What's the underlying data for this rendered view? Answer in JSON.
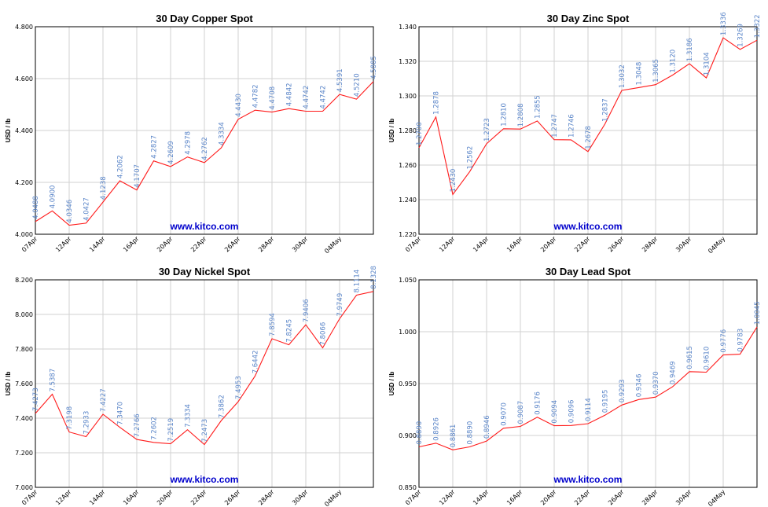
{
  "chart_data": [
    {
      "type": "line",
      "title": "30 Day Copper Spot",
      "ylabel": "USD / lb",
      "watermark": "www.kitco.com",
      "ylim": [
        4.0,
        4.8
      ],
      "yticks": [
        "4.000",
        "4.200",
        "4.400",
        "4.600",
        "4.800"
      ],
      "xtick_labels": [
        "07Apr",
        "12Apr",
        "14Apr",
        "16Apr",
        "20Apr",
        "22Apr",
        "26Apr",
        "28Apr",
        "30Apr",
        "04May"
      ],
      "grid": true,
      "series": [
        {
          "values": [
            4.0488,
            4.09,
            4.0346,
            4.0427,
            4.1238,
            4.2062,
            4.1707,
            4.2827,
            4.2609,
            4.2978,
            4.2762,
            4.3334,
            4.443,
            4.4782,
            4.4708,
            4.4842,
            4.4742,
            4.4742,
            4.5391,
            4.521,
            4.5885
          ]
        }
      ],
      "data_labels": [
        "4.0488",
        "4.0900",
        "4.0346",
        "4.0427",
        "4.1238",
        "4.2062",
        "4.1707",
        "4.2827",
        "4.2609",
        "4.2978",
        "4.2762",
        "4.3334",
        "4.4430",
        "4.4782",
        "4.4708",
        "4.4842",
        "4.4742",
        "4.4742",
        "4.5391",
        "4.5210",
        "4.5885"
      ]
    },
    {
      "type": "line",
      "title": "30 Day Zinc Spot",
      "ylabel": "USD / lb",
      "watermark": "www.kitco.com",
      "ylim": [
        1.22,
        1.34
      ],
      "yticks": [
        "1.220",
        "1.240",
        "1.260",
        "1.280",
        "1.300",
        "1.320",
        "1.340"
      ],
      "xtick_labels": [
        "07Apr",
        "12Apr",
        "14Apr",
        "16Apr",
        "20Apr",
        "22Apr",
        "26Apr",
        "28Apr",
        "30Apr",
        "04May"
      ],
      "grid": true,
      "series": [
        {
          "values": [
            1.27,
            1.2878,
            1.243,
            1.2562,
            1.2723,
            1.281,
            1.2808,
            1.2855,
            1.2747,
            1.2746,
            1.2678,
            1.2837,
            1.3032,
            1.3048,
            1.3065,
            1.312,
            1.3186,
            1.3104,
            1.3336,
            1.3269,
            1.3322
          ]
        }
      ],
      "data_labels": [
        "1.2700",
        "1.2878",
        "1.2430",
        "1.2562",
        "1.2723",
        "1.2810",
        "1.2808",
        "1.2855",
        "1.2747",
        "1.2746",
        "1.2678",
        "1.2837",
        "1.3032",
        "1.3048",
        "1.3065",
        "1.3120",
        "1.3186",
        "1.3104",
        "1.3336",
        "1.3269",
        "1.3322"
      ]
    },
    {
      "type": "line",
      "title": "30 Day Nickel Spot",
      "ylabel": "USD / lb",
      "watermark": "www.kitco.com",
      "ylim": [
        7.0,
        8.2
      ],
      "yticks": [
        "7.000",
        "7.200",
        "7.400",
        "7.600",
        "7.800",
        "8.000",
        "8.200"
      ],
      "xtick_labels": [
        "07Apr",
        "12Apr",
        "14Apr",
        "16Apr",
        "20Apr",
        "22Apr",
        "26Apr",
        "28Apr",
        "30Apr",
        "04May"
      ],
      "grid": true,
      "series": [
        {
          "values": [
            7.4273,
            7.5387,
            7.3198,
            7.2933,
            7.4227,
            7.347,
            7.2766,
            7.2602,
            7.2519,
            7.3334,
            7.2473,
            7.3862,
            7.4953,
            7.6442,
            7.8594,
            7.8245,
            7.9406,
            7.8066,
            7.9749,
            8.1114,
            8.1328
          ]
        }
      ],
      "data_labels": [
        "7.4273",
        "7.5387",
        "7.3198",
        "7.2933",
        "7.4227",
        "7.3470",
        "7.2766",
        "7.2602",
        "7.2519",
        "7.3334",
        "7.2473",
        "7.3862",
        "7.4953",
        "7.6442",
        "7.8594",
        "7.8245",
        "7.9406",
        "7.8066",
        "7.9749",
        "8.1114",
        "8.1328"
      ]
    },
    {
      "type": "line",
      "title": "30 Day Lead Spot",
      "ylabel": "USD / lb",
      "watermark": "www.kitco.com",
      "ylim": [
        0.85,
        1.05
      ],
      "yticks": [
        "0.850",
        "0.900",
        "0.950",
        "1.000",
        "1.050"
      ],
      "xtick_labels": [
        "07Apr",
        "12Apr",
        "14Apr",
        "16Apr",
        "20Apr",
        "22Apr",
        "26Apr",
        "28Apr",
        "30Apr",
        "04May"
      ],
      "grid": true,
      "series": [
        {
          "values": [
            0.889,
            0.8926,
            0.8861,
            0.889,
            0.8946,
            0.907,
            0.9087,
            0.9176,
            0.9094,
            0.9096,
            0.9114,
            0.9195,
            0.9293,
            0.9346,
            0.937,
            0.9469,
            0.9615,
            0.961,
            0.9776,
            0.9783,
            1.0045
          ]
        }
      ],
      "data_labels": [
        "0.8890",
        "0.8926",
        "0.8861",
        "0.8890",
        "0.8946",
        "0.9070",
        "0.9087",
        "0.9176",
        "0.9094",
        "0.9096",
        "0.9114",
        "0.9195",
        "0.9293",
        "0.9346",
        "0.9370",
        "0.9469",
        "0.9615",
        "0.9610",
        "0.9776",
        "0.9783",
        "1.0045"
      ]
    }
  ]
}
